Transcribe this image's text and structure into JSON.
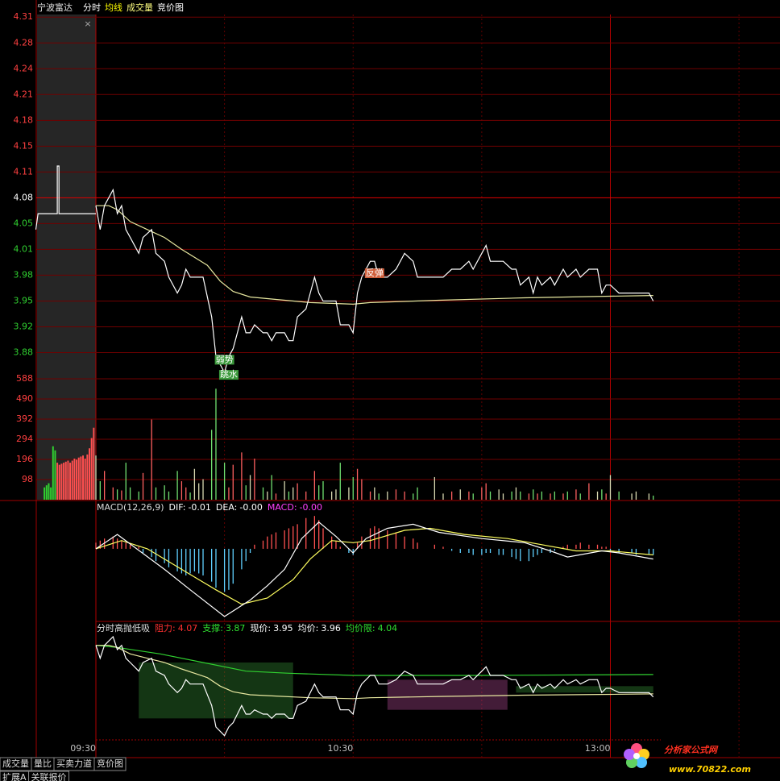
{
  "header": {
    "stock": "宁波富达",
    "tabs": [
      {
        "text": "分时",
        "color": "#ffffff"
      },
      {
        "text": "均线",
        "color": "#ffff00"
      },
      {
        "text": "成交量",
        "color": "#ffff80"
      },
      {
        "text": "竞价图",
        "color": "#ffffff"
      }
    ],
    "close_icon": "×"
  },
  "time_axis": {
    "xlim": [
      0,
      159
    ],
    "ticks": [
      {
        "value": 0,
        "label": "09:30"
      },
      {
        "value": 60,
        "label": "10:30"
      },
      {
        "value": 120,
        "label": "13:00"
      }
    ],
    "grid": [
      0,
      30,
      60,
      90,
      120,
      150
    ],
    "solid": [
      0,
      120
    ]
  },
  "price_panel": {
    "ylim": [
      3.852,
      4.325
    ],
    "prev_close": 4.08,
    "yticks": [
      {
        "value": 4.3075,
        "label": "4.31"
      },
      {
        "value": 4.275,
        "label": "4.28"
      },
      {
        "value": 4.2425,
        "label": "4.24"
      },
      {
        "value": 4.21,
        "label": "4.21"
      },
      {
        "value": 4.1775,
        "label": "4.18"
      },
      {
        "value": 4.145,
        "label": "4.15"
      },
      {
        "value": 4.1125,
        "label": "4.11"
      },
      {
        "value": 4.08,
        "label": "4.08"
      },
      {
        "value": 4.0475,
        "label": "4.05"
      },
      {
        "value": 4.015,
        "label": "4.01"
      },
      {
        "value": 3.9825,
        "label": "3.98"
      },
      {
        "value": 3.95,
        "label": "3.95"
      },
      {
        "value": 3.9175,
        "label": "3.92"
      },
      {
        "value": 3.885,
        "label": "3.88"
      }
    ],
    "x": [
      0,
      1,
      2,
      4,
      5,
      6,
      7,
      8,
      10,
      11,
      13,
      14,
      16,
      17,
      19,
      20,
      21,
      22,
      23,
      24,
      25,
      27,
      28,
      30,
      31,
      32,
      34,
      35,
      36,
      37,
      39,
      40,
      41,
      42,
      44,
      45,
      46,
      47,
      49,
      51,
      52,
      53,
      55,
      56,
      57,
      59,
      60,
      61,
      62,
      64,
      65,
      66,
      68,
      70,
      72,
      74,
      75,
      79,
      81,
      83,
      85,
      87,
      88,
      90,
      91,
      92,
      94,
      95,
      97,
      98,
      99,
      101,
      102,
      103,
      104,
      106,
      107,
      109,
      110,
      112,
      113,
      115,
      117,
      118,
      119,
      120,
      122,
      125,
      126,
      129,
      130
    ],
    "price": [
      4.07,
      4.04,
      4.07,
      4.09,
      4.06,
      4.07,
      4.04,
      4.03,
      4.01,
      4.03,
      4.04,
      4.01,
      4.0,
      3.98,
      3.96,
      3.97,
      3.99,
      3.98,
      3.98,
      3.98,
      3.98,
      3.93,
      3.88,
      3.86,
      3.88,
      3.89,
      3.93,
      3.91,
      3.91,
      3.92,
      3.91,
      3.91,
      3.9,
      3.91,
      3.91,
      3.9,
      3.9,
      3.93,
      3.94,
      3.98,
      3.96,
      3.95,
      3.95,
      3.95,
      3.92,
      3.92,
      3.91,
      3.96,
      3.98,
      4.0,
      4.0,
      3.98,
      3.98,
      3.99,
      4.01,
      4.0,
      3.98,
      3.98,
      3.98,
      3.99,
      3.99,
      4.0,
      3.99,
      4.01,
      4.02,
      4.0,
      4.0,
      4.0,
      3.99,
      3.99,
      3.97,
      3.98,
      3.96,
      3.98,
      3.97,
      3.98,
      3.97,
      3.99,
      3.98,
      3.99,
      3.98,
      3.99,
      3.99,
      3.96,
      3.97,
      3.97,
      3.96,
      3.96,
      3.96,
      3.96,
      3.95
    ],
    "price_color": "#ffffff",
    "avg_x": [
      0,
      3,
      5,
      8,
      12,
      16,
      20,
      23,
      26,
      29,
      32,
      36,
      42,
      50,
      60,
      64,
      80,
      100,
      120,
      130
    ],
    "avg": [
      4.07,
      4.07,
      4.065,
      4.05,
      4.04,
      4.03,
      4.015,
      4.005,
      3.995,
      3.975,
      3.962,
      3.955,
      3.952,
      3.948,
      3.946,
      3.948,
      3.951,
      3.954,
      3.956,
      3.957
    ],
    "avg_color": "#e8e8a0",
    "auction_x": [
      -14,
      -13.5,
      -9,
      -9,
      -8.6,
      -8.6,
      0
    ],
    "auction": [
      4.04,
      4.06,
      4.06,
      4.12,
      4.12,
      4.06,
      4.06
    ],
    "annotations": [
      {
        "text": "弱势",
        "x": 30,
        "y": 3.876,
        "color": "#3c9a3c"
      },
      {
        "text": "跳水",
        "x": 31,
        "y": 3.857,
        "color": "#3c9a3c"
      },
      {
        "text": "反弹",
        "x": 65,
        "y": 3.985,
        "color": "#d0603c"
      }
    ]
  },
  "volume_panel": {
    "ylim": [
      0,
      588
    ],
    "yticks": [
      588,
      490,
      392,
      294,
      196,
      98
    ],
    "values": [
      215,
      90,
      140,
      60,
      50,
      45,
      180,
      60,
      40,
      130,
      390,
      60,
      70,
      40,
      140,
      90,
      60,
      35,
      150,
      80,
      100,
      340,
      540,
      180,
      60,
      170,
      230,
      70,
      120,
      200,
      60,
      40,
      120,
      30,
      90,
      40,
      60,
      80,
      40,
      140,
      70,
      90,
      40,
      50,
      180,
      60,
      110,
      150,
      100,
      40,
      60,
      30,
      40,
      50,
      40,
      30,
      60,
      110,
      30,
      40,
      50,
      40,
      30,
      60,
      80,
      40,
      50,
      30,
      40,
      60,
      40,
      30,
      50,
      30,
      40,
      30,
      40,
      30,
      40,
      50,
      30,
      80,
      40,
      50,
      30,
      120,
      40,
      30,
      40,
      30,
      20
    ],
    "up_color": "#ff6060",
    "down_color": "#70e070",
    "flat_color": "#d8d8b0",
    "auction_x": [
      -12,
      -11.5,
      -11,
      -10.5,
      -10,
      -9.5,
      -9,
      -8.5,
      -8,
      -7.5,
      -7,
      -6.5,
      -6,
      -5.5,
      -5,
      -4.5,
      -4,
      -3.5,
      -3,
      -2.5,
      -2,
      -1.5,
      -1,
      -0.5
    ],
    "auction_values": [
      60,
      70,
      80,
      60,
      260,
      240,
      180,
      170,
      175,
      180,
      185,
      190,
      180,
      190,
      200,
      195,
      205,
      210,
      215,
      200,
      220,
      250,
      300,
      350
    ],
    "auction_colors": [
      "#30d030",
      "#30d030",
      "#30d030",
      "#30d030",
      "#30d030",
      "#30d030",
      "#ff5050",
      "#ff5050",
      "#ff5050",
      "#ff5050",
      "#ff5050",
      "#ff5050",
      "#ff5050",
      "#ff5050",
      "#ff5050",
      "#ff5050",
      "#ff5050",
      "#ff5050",
      "#ff5050",
      "#ff5050",
      "#ff5050",
      "#ff5050",
      "#ff5050",
      "#ff5050"
    ]
  },
  "macd_panel": {
    "title": "MACD(12,26,9)",
    "ylim": [
      -0.035,
      0.02
    ],
    "readouts": [
      {
        "label": "DIF:",
        "value": "-0.01",
        "color": "#ffffff"
      },
      {
        "label": "DEA:",
        "value": "-0.00",
        "color": "#ffffff"
      },
      {
        "label": "MACD:",
        "value": "-0.00",
        "color": "#ff40ff"
      }
    ],
    "dif_x": [
      0,
      5,
      16,
      22,
      30,
      36,
      40,
      44,
      48,
      52,
      56,
      60,
      63,
      68,
      74,
      80,
      90,
      100,
      106,
      110,
      118,
      122,
      130
    ],
    "dif": [
      0,
      0.007,
      -0.01,
      -0.02,
      -0.033,
      -0.025,
      -0.018,
      -0.01,
      0.005,
      0.013,
      0.006,
      -0.002,
      0.005,
      0.01,
      0.012,
      0.008,
      0.005,
      0.003,
      -0.001,
      -0.004,
      -0.001,
      -0.002,
      -0.005
    ],
    "dea_x": [
      0,
      6,
      12,
      20,
      28,
      34,
      40,
      46,
      50,
      55,
      60,
      64,
      72,
      78,
      86,
      96,
      104,
      112,
      120,
      130
    ],
    "dea": [
      0,
      0.004,
      0,
      -0.01,
      -0.02,
      -0.027,
      -0.024,
      -0.015,
      -0.005,
      0.004,
      0.003,
      0.004,
      0.009,
      0.01,
      0.007,
      0.005,
      0.002,
      -0.001,
      -0.001,
      -0.003
    ],
    "hist": [
      0.003,
      0.004,
      0.005,
      0.006,
      0.005,
      0.004,
      0.003,
      0.002,
      0.001,
      -0.002,
      -0.004,
      -0.006,
      -0.007,
      -0.009,
      -0.011,
      -0.012,
      -0.013,
      -0.012,
      -0.011,
      -0.012,
      -0.013,
      -0.016,
      -0.019,
      -0.021,
      -0.02,
      -0.017,
      -0.01,
      -0.006,
      -0.002,
      0.002,
      0.004,
      0.006,
      0.007,
      0.008,
      0.009,
      0.01,
      0.011,
      0.012,
      0.015,
      0.016,
      0.014,
      0.01,
      0.006,
      0.004,
      0.001,
      -0.002,
      -0.003,
      0.003,
      0.006,
      0.01,
      0.011,
      0.01,
      0.009,
      0.008,
      0.006,
      0.005,
      0.003,
      0.002,
      0.001,
      -0.001,
      -0.002,
      -0.002,
      -0.003,
      -0.003,
      -0.002,
      -0.002,
      -0.003,
      -0.003,
      -0.004,
      -0.005,
      -0.006,
      -0.006,
      -0.004,
      -0.003,
      -0.002,
      -0.002,
      -0.001,
      0.001,
      0.002,
      0.002,
      0.003,
      0.002,
      0.002,
      0.001,
      0.001,
      -0.001,
      -0.002,
      -0.002,
      -0.003,
      -0.003,
      -0.003
    ],
    "dif_color": "#ffffff",
    "dea_color": "#ffff60",
    "pos_color": "#ff5050",
    "neg_color": "#60d0ff"
  },
  "signal_panel": {
    "title": "分时高抛低吸",
    "ylim": [
      3.85,
      4.09
    ],
    "readouts": [
      {
        "label": "阻力:",
        "value": 4.07,
        "color": "#ff3030"
      },
      {
        "label": "支撑:",
        "value": 3.87,
        "color": "#30e030"
      },
      {
        "label": "现价:",
        "value": 3.95,
        "color": "#ffffff"
      },
      {
        "label": "均价:",
        "value": 3.96,
        "color": "#ffffff"
      },
      {
        "label": "均价限:",
        "value": 4.04,
        "color": "#30e030"
      }
    ],
    "limit_x": [
      0,
      5,
      15,
      25,
      35,
      45,
      60,
      90,
      130
    ],
    "limit": [
      4.07,
      4.065,
      4.05,
      4.03,
      4.01,
      4.005,
      4.0,
      4.0,
      4.002
    ],
    "limit_color": "#30d030",
    "zones": [
      {
        "x": [
          10,
          46
        ],
        "y": [
          3.9,
          4.03
        ],
        "color": "#3a9a3a"
      },
      {
        "x": [
          68,
          96
        ],
        "y": [
          3.92,
          3.99
        ],
        "color": "#c050a0"
      },
      {
        "x": [
          98,
          130
        ],
        "y": [
          3.96,
          3.975
        ],
        "color": "#3a9a3a"
      }
    ]
  },
  "tabs": {
    "row1": [
      "成交量",
      "量比",
      "买卖力道",
      "竞价图"
    ],
    "row2": [
      "扩展A",
      "关联报价"
    ]
  },
  "watermark": {
    "name": "分析家公式网",
    "url": "www.70822.com"
  }
}
